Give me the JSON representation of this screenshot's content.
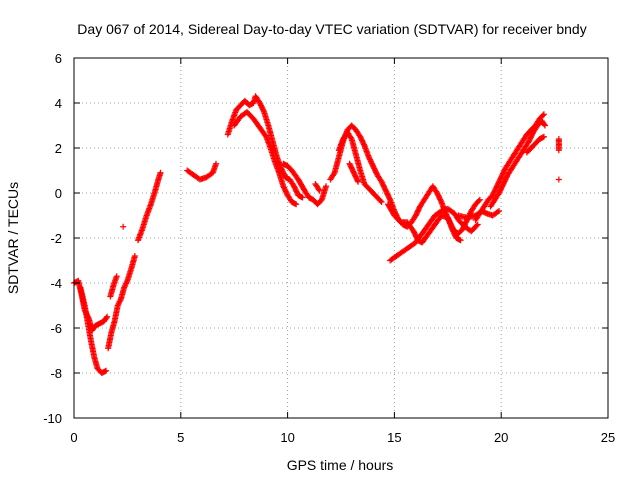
{
  "chart_data": {
    "type": "scatter",
    "title": "Day 067 of 2014, Sidereal Day-to-day VTEC variation (SDTVAR) for receiver bndy",
    "xlabel": "GPS time / hours",
    "ylabel": "SDTVAR / TECUs",
    "xlim": [
      0,
      25
    ],
    "ylim": [
      -10,
      6
    ],
    "xticks": [
      0,
      5,
      10,
      15,
      20,
      25
    ],
    "yticks": [
      -10,
      -8,
      -6,
      -4,
      -2,
      0,
      2,
      4,
      6
    ],
    "xtick_labels": [
      "0",
      "5",
      "10",
      "15",
      "20",
      "25"
    ],
    "ytick_labels": [
      "-10",
      "-8",
      "-6",
      "-4",
      "-2",
      "0",
      "2",
      "4",
      "6"
    ],
    "grid": true,
    "marker": "+",
    "color": "#ff0000",
    "series": [
      {
        "name": "SDTVAR",
        "segments": [
          [
            [
              0.0,
              -4.0
            ],
            [
              0.2,
              -3.9
            ],
            [
              0.35,
              -4.5
            ],
            [
              0.5,
              -5.2
            ],
            [
              0.7,
              -5.6
            ],
            [
              0.85,
              -6.1
            ],
            [
              1.0,
              -5.9
            ],
            [
              1.2,
              -5.8
            ],
            [
              1.4,
              -5.7
            ],
            [
              1.55,
              -5.5
            ]
          ],
          [
            [
              0.3,
              -4.2
            ],
            [
              0.5,
              -5.0
            ],
            [
              0.65,
              -5.8
            ],
            [
              0.8,
              -6.6
            ],
            [
              0.95,
              -7.3
            ],
            [
              1.1,
              -7.8
            ],
            [
              1.3,
              -8.0
            ],
            [
              1.5,
              -7.9
            ]
          ],
          [
            [
              1.6,
              -6.9
            ],
            [
              1.75,
              -6.2
            ],
            [
              1.9,
              -5.7
            ],
            [
              2.05,
              -5.0
            ],
            [
              2.2,
              -4.7
            ],
            [
              2.35,
              -4.2
            ],
            [
              2.5,
              -3.9
            ],
            [
              2.7,
              -3.3
            ],
            [
              2.85,
              -2.8
            ]
          ],
          [
            [
              1.7,
              -4.6
            ],
            [
              1.85,
              -4.1
            ],
            [
              2.0,
              -3.7
            ]
          ],
          [
            [
              2.3,
              -1.5
            ]
          ],
          [
            [
              3.0,
              -2.1
            ],
            [
              3.2,
              -1.6
            ],
            [
              3.4,
              -1.0
            ],
            [
              3.6,
              -0.5
            ],
            [
              3.8,
              0.1
            ],
            [
              3.95,
              0.6
            ],
            [
              4.05,
              0.9
            ]
          ],
          [
            [
              5.3,
              1.0
            ],
            [
              5.6,
              0.8
            ],
            [
              5.9,
              0.6
            ],
            [
              6.2,
              0.7
            ],
            [
              6.5,
              0.9
            ],
            [
              6.65,
              1.3
            ]
          ],
          [
            [
              7.2,
              2.6
            ],
            [
              7.4,
              3.2
            ],
            [
              7.6,
              3.7
            ],
            [
              7.8,
              3.9
            ],
            [
              8.0,
              4.1
            ],
            [
              8.2,
              3.9
            ],
            [
              8.4,
              4.0
            ],
            [
              8.5,
              4.3
            ],
            [
              8.7,
              4.0
            ],
            [
              8.9,
              3.6
            ],
            [
              9.1,
              3.0
            ],
            [
              9.3,
              2.3
            ],
            [
              9.5,
              1.6
            ],
            [
              9.7,
              1.1
            ],
            [
              9.9,
              0.7
            ],
            [
              10.1,
              0.6
            ],
            [
              10.3,
              0.3
            ],
            [
              10.5,
              -0.1
            ],
            [
              10.7,
              -0.2
            ]
          ],
          [
            [
              7.5,
              3.0
            ],
            [
              7.8,
              3.4
            ],
            [
              8.1,
              3.6
            ],
            [
              8.4,
              3.3
            ],
            [
              8.7,
              2.9
            ],
            [
              9.0,
              2.5
            ],
            [
              9.2,
              2.0
            ],
            [
              9.4,
              1.4
            ],
            [
              9.6,
              0.9
            ],
            [
              9.8,
              0.3
            ],
            [
              10.0,
              -0.1
            ],
            [
              10.2,
              -0.4
            ],
            [
              10.4,
              -0.5
            ]
          ],
          [
            [
              9.8,
              1.3
            ],
            [
              10.0,
              1.2
            ],
            [
              10.2,
              1.0
            ],
            [
              10.5,
              0.6
            ],
            [
              10.8,
              0.1
            ],
            [
              11.0,
              -0.2
            ],
            [
              11.2,
              -0.3
            ],
            [
              11.4,
              -0.5
            ],
            [
              11.6,
              -0.3
            ],
            [
              11.8,
              0.3
            ]
          ],
          [
            [
              11.3,
              0.4
            ],
            [
              11.5,
              0.1
            ]
          ],
          [
            [
              12.0,
              0.6
            ],
            [
              12.2,
              0.9
            ],
            [
              12.4,
              1.6
            ],
            [
              12.6,
              2.3
            ],
            [
              12.8,
              2.8
            ],
            [
              13.0,
              3.0
            ],
            [
              13.2,
              2.8
            ],
            [
              13.4,
              2.5
            ],
            [
              13.6,
              2.1
            ],
            [
              13.8,
              1.6
            ],
            [
              14.0,
              1.2
            ],
            [
              14.2,
              0.8
            ],
            [
              14.4,
              0.5
            ],
            [
              14.6,
              0.1
            ],
            [
              14.8,
              -0.3
            ],
            [
              15.0,
              -0.8
            ],
            [
              15.2,
              -1.2
            ],
            [
              15.4,
              -1.4
            ],
            [
              15.6,
              -1.5
            ],
            [
              15.8,
              -1.3
            ],
            [
              16.0,
              -1.0
            ],
            [
              16.2,
              -0.6
            ],
            [
              16.4,
              -0.3
            ],
            [
              16.6,
              0.0
            ],
            [
              16.8,
              0.3
            ],
            [
              17.0,
              0.0
            ],
            [
              17.2,
              -0.4
            ],
            [
              17.4,
              -0.9
            ],
            [
              17.6,
              -1.3
            ],
            [
              17.8,
              -1.7
            ],
            [
              18.0,
              -1.8
            ],
            [
              18.2,
              -1.6
            ],
            [
              18.4,
              -1.2
            ],
            [
              18.6,
              -0.8
            ],
            [
              18.8,
              -0.5
            ],
            [
              19.0,
              -0.3
            ]
          ],
          [
            [
              12.4,
              1.9
            ],
            [
              12.6,
              2.4
            ],
            [
              12.8,
              2.7
            ],
            [
              13.0,
              2.4
            ],
            [
              13.2,
              1.7
            ],
            [
              13.4,
              1.0
            ],
            [
              13.6,
              0.4
            ],
            [
              13.8,
              0.2
            ],
            [
              14.0,
              0.0
            ],
            [
              14.2,
              -0.2
            ],
            [
              14.4,
              -0.4
            ]
          ],
          [
            [
              12.9,
              1.3
            ],
            [
              13.1,
              0.9
            ],
            [
              13.3,
              0.5
            ]
          ],
          [
            [
              14.7,
              -0.5
            ],
            [
              15.0,
              -1.0
            ],
            [
              15.3,
              -1.3
            ],
            [
              15.6,
              -1.3
            ],
            [
              15.9,
              -1.7
            ],
            [
              16.1,
              -2.1
            ],
            [
              16.3,
              -2.2
            ],
            [
              16.6,
              -1.8
            ],
            [
              16.9,
              -1.4
            ],
            [
              17.2,
              -1.0
            ],
            [
              17.5,
              -1.1
            ],
            [
              17.7,
              -1.6
            ],
            [
              17.9,
              -2.0
            ],
            [
              18.1,
              -2.1
            ]
          ],
          [
            [
              14.8,
              -3.0
            ],
            [
              15.1,
              -2.8
            ],
            [
              15.4,
              -2.6
            ],
            [
              15.7,
              -2.4
            ],
            [
              16.0,
              -2.2
            ],
            [
              16.3,
              -1.8
            ],
            [
              16.6,
              -1.4
            ],
            [
              16.9,
              -1.0
            ],
            [
              17.2,
              -0.8
            ],
            [
              17.5,
              -0.7
            ],
            [
              17.8,
              -0.9
            ],
            [
              18.0,
              -1.2
            ],
            [
              18.3,
              -1.5
            ],
            [
              18.6,
              -1.7
            ],
            [
              18.9,
              -1.4
            ]
          ],
          [
            [
              18.0,
              -1.0
            ],
            [
              18.4,
              -1.1
            ],
            [
              18.8,
              -1.0
            ],
            [
              19.1,
              -0.8
            ],
            [
              19.3,
              -0.9
            ],
            [
              19.6,
              -1.0
            ],
            [
              19.9,
              -0.8
            ]
          ],
          [
            [
              18.8,
              -1.2
            ],
            [
              19.0,
              -0.9
            ],
            [
              19.2,
              -0.6
            ],
            [
              19.4,
              -0.3
            ],
            [
              19.6,
              -0.1
            ],
            [
              19.8,
              0.3
            ],
            [
              20.0,
              0.7
            ],
            [
              20.2,
              1.1
            ],
            [
              20.4,
              1.4
            ],
            [
              20.6,
              1.7
            ],
            [
              20.8,
              2.0
            ],
            [
              21.0,
              2.3
            ],
            [
              21.2,
              2.6
            ],
            [
              21.4,
              2.8
            ],
            [
              21.6,
              3.0
            ],
            [
              21.8,
              3.3
            ],
            [
              22.0,
              3.5
            ]
          ],
          [
            [
              19.5,
              -0.6
            ],
            [
              19.7,
              -0.3
            ],
            [
              19.9,
              0.0
            ],
            [
              20.1,
              0.4
            ],
            [
              20.3,
              0.8
            ],
            [
              20.5,
              1.1
            ],
            [
              20.7,
              1.4
            ],
            [
              20.9,
              1.7
            ],
            [
              21.1,
              2.0
            ],
            [
              21.3,
              2.3
            ],
            [
              21.5,
              2.7
            ],
            [
              21.7,
              3.0
            ],
            [
              21.9,
              3.2
            ],
            [
              22.05,
              3.0
            ]
          ],
          [
            [
              21.2,
              1.8
            ],
            [
              21.5,
              2.1
            ],
            [
              21.8,
              2.4
            ],
            [
              22.0,
              2.5
            ]
          ],
          [
            [
              22.7,
              2.4
            ],
            [
              22.7,
              2.1
            ],
            [
              22.7,
              1.9
            ]
          ],
          [
            [
              22.7,
              0.6
            ]
          ]
        ]
      }
    ]
  }
}
